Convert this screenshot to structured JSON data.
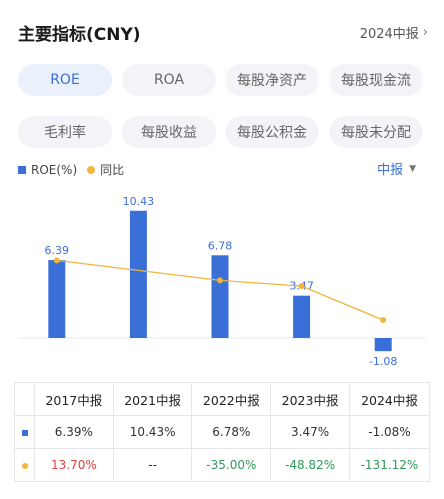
{
  "header": {
    "title": "主要指标(CNY)",
    "period": "2024中报"
  },
  "tabs": [
    {
      "label": "ROE",
      "active": true
    },
    {
      "label": "ROA",
      "active": false
    },
    {
      "label": "每股净资产",
      "active": false
    },
    {
      "label": "每股现金流",
      "active": false
    },
    {
      "label": "毛利率",
      "active": false
    },
    {
      "label": "每股收益",
      "active": false
    },
    {
      "label": "每股公积金",
      "active": false
    },
    {
      "label": "每股未分配",
      "active": false
    }
  ],
  "legend": {
    "series1": "ROE(%)",
    "series2": "同比"
  },
  "period_select": "中报",
  "colors": {
    "bar": "#3b6fd8",
    "line": "#f0b53d",
    "positive": "#e04141",
    "negative": "#2f9a5a"
  },
  "chart_data": {
    "type": "bar",
    "categories": [
      "2017中报",
      "2021中报",
      "2022中报",
      "2023中报",
      "2024中报"
    ],
    "series": [
      {
        "name": "ROE(%)",
        "values": [
          6.39,
          10.43,
          6.78,
          3.47,
          -1.08
        ]
      },
      {
        "name": "同比",
        "type": "line",
        "values": [
          13.7,
          null,
          -35.0,
          -48.82,
          -131.12
        ]
      }
    ],
    "value_labels": [
      "6.39",
      "10.43",
      "6.78",
      "3.47",
      "-1.08"
    ]
  },
  "table": {
    "headers": [
      "2017中报",
      "2021中报",
      "2022中报",
      "2023中报",
      "2024中报"
    ],
    "roe_row": [
      "6.39%",
      "10.43%",
      "6.78%",
      "3.47%",
      "-1.08%"
    ],
    "yoy_row": [
      "13.70%",
      "--",
      "-35.00%",
      "-48.82%",
      "-131.12%"
    ]
  }
}
